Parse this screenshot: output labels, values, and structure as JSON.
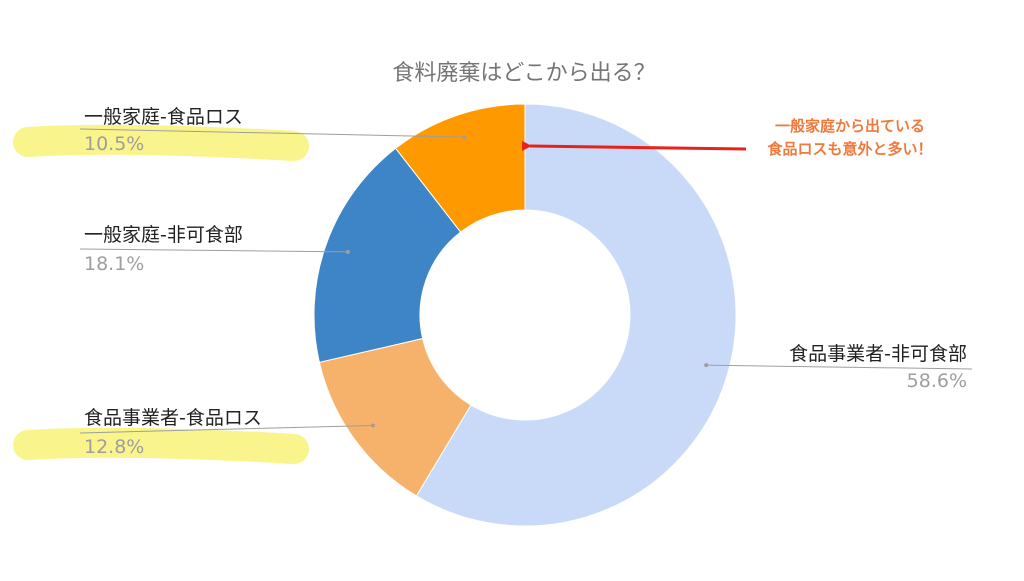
{
  "chart_data": {
    "type": "pie",
    "donut": true,
    "title": "食料廃棄はどこから出る？",
    "slices": [
      {
        "label": "食品事業者-非可食部",
        "value": 58.6,
        "value_label": "58.6%",
        "color": "#c9daf8"
      },
      {
        "label": "食品事業者-食品ロス",
        "value": 12.8,
        "value_label": "12.8%",
        "color": "#f6b26b",
        "highlighted": true
      },
      {
        "label": "一般家庭-非可食部",
        "value": 18.1,
        "value_label": "18.1%",
        "color": "#3d85c6"
      },
      {
        "label": "一般家庭-食品ロス",
        "value": 10.5,
        "value_label": "10.5%",
        "color": "#ff9900",
        "highlighted": true
      }
    ],
    "annotation": {
      "lines": [
        "一般家庭から出ている",
        "食品ロスも意外と多い！"
      ],
      "color": "#f07a3c",
      "arrow_color": "#e8211a",
      "points_to": "一般家庭-食品ロス"
    },
    "highlight_color": "#faf48c"
  }
}
